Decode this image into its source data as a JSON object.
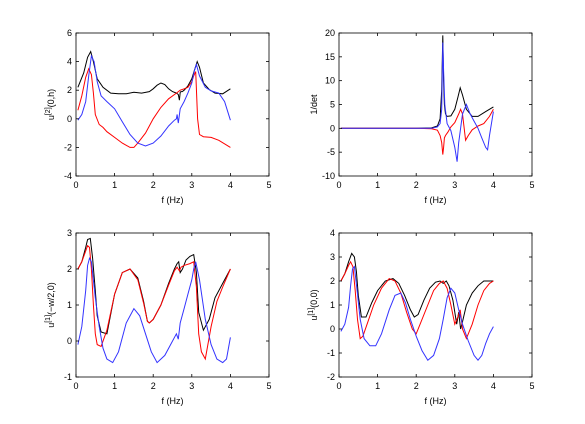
{
  "chart_data": [
    {
      "type": "line",
      "title": "",
      "xlabel": "f (Hz)",
      "ylabel": "u",
      "ylabel_sup": "[2]",
      "ylabel_arg": "(0,h)",
      "xlim": [
        0,
        5
      ],
      "ylim": [
        -4,
        6
      ],
      "xticks": [
        0,
        1,
        2,
        3,
        4,
        5
      ],
      "yticks": [
        -4,
        -2,
        0,
        2,
        4,
        6
      ],
      "grid": false,
      "series": [
        {
          "color": "#000000",
          "x": [
            0.05,
            0.2,
            0.3,
            0.38,
            0.45,
            0.55,
            0.7,
            0.9,
            1.1,
            1.3,
            1.5,
            1.7,
            1.9,
            2.0,
            2.1,
            2.2,
            2.3,
            2.4,
            2.5,
            2.6,
            2.65,
            2.68,
            2.7,
            2.72,
            2.75,
            2.8,
            2.9,
            3.0,
            3.08,
            3.14,
            3.2,
            3.3,
            3.45,
            3.6,
            3.8,
            4.0
          ],
          "y": [
            2.2,
            3.2,
            4.3,
            4.7,
            4.0,
            2.8,
            2.2,
            1.8,
            1.75,
            1.75,
            1.85,
            1.8,
            1.9,
            2.1,
            2.35,
            2.5,
            2.4,
            2.1,
            1.9,
            1.8,
            1.7,
            1.3,
            1.85,
            1.9,
            1.9,
            2.0,
            2.3,
            2.8,
            3.5,
            4.0,
            3.6,
            2.5,
            2.05,
            1.8,
            1.75,
            2.1
          ]
        },
        {
          "color": "#ff0000",
          "x": [
            0.05,
            0.15,
            0.25,
            0.33,
            0.4,
            0.45,
            0.5,
            0.6,
            0.7,
            0.8,
            1.0,
            1.2,
            1.4,
            1.5,
            1.6,
            1.8,
            2.0,
            2.2,
            2.4,
            2.6,
            2.7,
            2.8,
            2.9,
            3.0,
            3.05,
            3.1,
            3.15,
            3.2,
            3.3,
            3.5,
            3.7,
            4.0
          ],
          "y": [
            0.6,
            1.6,
            2.9,
            3.5,
            3.1,
            1.8,
            0.3,
            -0.4,
            -0.6,
            -0.9,
            -1.3,
            -1.7,
            -2.0,
            -2.0,
            -1.7,
            -1.0,
            0.0,
            0.8,
            1.4,
            1.8,
            2.0,
            2.1,
            2.2,
            2.6,
            3.0,
            3.3,
            0.0,
            -1.1,
            -1.25,
            -1.3,
            -1.5,
            -2.0
          ]
        },
        {
          "color": "#3333ff",
          "x": [
            0.05,
            0.15,
            0.25,
            0.33,
            0.4,
            0.47,
            0.55,
            0.65,
            0.8,
            1.0,
            1.2,
            1.4,
            1.6,
            1.8,
            2.0,
            2.2,
            2.4,
            2.55,
            2.6,
            2.62,
            2.65,
            2.7,
            2.8,
            2.9,
            3.0,
            3.07,
            3.12,
            3.2,
            3.35,
            3.5,
            3.7,
            3.85,
            4.0
          ],
          "y": [
            -0.1,
            0.3,
            1.2,
            3.0,
            4.4,
            4.0,
            2.6,
            1.6,
            1.2,
            0.7,
            -0.2,
            -1.1,
            -1.7,
            -1.9,
            -1.7,
            -1.2,
            -0.5,
            -0.1,
            0.0,
            0.3,
            -0.3,
            0.7,
            1.2,
            1.8,
            2.5,
            3.4,
            3.8,
            3.0,
            2.2,
            1.95,
            1.8,
            1.2,
            -0.1
          ]
        }
      ]
    },
    {
      "type": "line",
      "title": "",
      "xlabel": "f (Hz)",
      "ylabel": "1/det",
      "xlim": [
        0,
        5
      ],
      "ylim": [
        -10,
        20
      ],
      "xticks": [
        0,
        1,
        2,
        3,
        4,
        5
      ],
      "yticks": [
        -10,
        -5,
        0,
        5,
        10,
        15,
        20
      ],
      "grid": false,
      "series": [
        {
          "color": "#000000",
          "x": [
            0.05,
            1.0,
            2.0,
            2.4,
            2.55,
            2.62,
            2.66,
            2.69,
            2.71,
            2.73,
            2.76,
            2.8,
            2.9,
            3.0,
            3.08,
            3.14,
            3.2,
            3.3,
            3.45,
            3.6,
            3.8,
            4.0
          ],
          "y": [
            0,
            0,
            0,
            0.1,
            0.5,
            2.0,
            8.0,
            19.5,
            10.0,
            5.0,
            3.0,
            2.5,
            2.6,
            4.0,
            6.5,
            8.5,
            7.0,
            4.0,
            2.5,
            2.5,
            3.5,
            4.5
          ]
        },
        {
          "color": "#ff0000",
          "x": [
            0.05,
            1.0,
            2.0,
            2.4,
            2.55,
            2.62,
            2.66,
            2.69,
            2.71,
            2.73,
            2.76,
            2.82,
            2.9,
            3.0,
            3.1,
            3.15,
            3.2,
            3.28,
            3.35,
            3.45,
            3.6,
            3.75,
            3.9,
            4.0
          ],
          "y": [
            0,
            0,
            0,
            -0.1,
            -0.4,
            -1.5,
            -3.0,
            -5.5,
            -4.0,
            -2.0,
            -1.5,
            -0.8,
            0.3,
            1.2,
            3.0,
            4.0,
            3.0,
            -2.5,
            -1.5,
            -0.3,
            0.5,
            1.0,
            2.5,
            4.0
          ]
        },
        {
          "color": "#3333ff",
          "x": [
            0.05,
            1.0,
            2.0,
            2.4,
            2.55,
            2.62,
            2.66,
            2.69,
            2.71,
            2.74,
            2.8,
            2.9,
            3.0,
            3.06,
            3.1,
            3.15,
            3.2,
            3.3,
            3.4,
            3.5,
            3.6,
            3.7,
            3.8,
            3.85,
            3.9,
            4.0
          ],
          "y": [
            0,
            0,
            0,
            0,
            0.3,
            1.0,
            4.0,
            18.0,
            12.0,
            5.0,
            1.0,
            -0.5,
            -4.0,
            -7.0,
            -3.0,
            0.0,
            3.0,
            5.0,
            3.0,
            1.5,
            0.0,
            -2.0,
            -4.0,
            -4.5,
            -1.5,
            3.5
          ]
        }
      ]
    },
    {
      "type": "line",
      "title": "",
      "xlabel": "f (Hz)",
      "ylabel": "u",
      "ylabel_sup": "[1]",
      "ylabel_arg": "(−w/2,0)",
      "xlim": [
        0,
        5
      ],
      "ylim": [
        -1,
        3
      ],
      "xticks": [
        0,
        1,
        2,
        3,
        4,
        5
      ],
      "yticks": [
        -1,
        0,
        1,
        2,
        3
      ],
      "grid": false,
      "series": [
        {
          "color": "#000000",
          "x": [
            0.05,
            0.15,
            0.25,
            0.3,
            0.37,
            0.43,
            0.5,
            0.55,
            0.65,
            0.8,
            1.0,
            1.2,
            1.4,
            1.6,
            1.75,
            1.85,
            1.9,
            2.0,
            2.2,
            2.4,
            2.55,
            2.62,
            2.66,
            2.7,
            2.76,
            2.85,
            2.95,
            3.05,
            3.12,
            3.18,
            3.3,
            3.45,
            3.6,
            3.8,
            4.0
          ],
          "y": [
            2.0,
            2.2,
            2.6,
            2.82,
            2.85,
            2.3,
            1.4,
            0.7,
            0.25,
            0.2,
            1.3,
            1.9,
            2.0,
            1.75,
            1.1,
            0.55,
            0.5,
            0.6,
            1.0,
            1.6,
            2.0,
            2.15,
            2.2,
            1.9,
            2.0,
            2.25,
            2.35,
            2.4,
            1.9,
            0.8,
            0.3,
            0.6,
            1.2,
            1.6,
            2.0
          ]
        },
        {
          "color": "#ff0000",
          "x": [
            0.05,
            0.15,
            0.25,
            0.3,
            0.35,
            0.4,
            0.45,
            0.5,
            0.55,
            0.65,
            0.8,
            1.0,
            1.2,
            1.4,
            1.6,
            1.75,
            1.85,
            1.9,
            2.0,
            2.2,
            2.4,
            2.55,
            2.62,
            2.68,
            2.72,
            2.8,
            2.95,
            3.05,
            3.12,
            3.18,
            3.25,
            3.35,
            3.5,
            3.65,
            3.8,
            4.0
          ],
          "y": [
            2.0,
            2.2,
            2.5,
            2.65,
            2.6,
            2.0,
            1.0,
            0.2,
            -0.1,
            -0.15,
            0.3,
            1.3,
            1.9,
            2.0,
            1.7,
            1.05,
            0.55,
            0.5,
            0.6,
            1.0,
            1.55,
            1.95,
            2.05,
            1.95,
            2.05,
            2.1,
            2.15,
            2.2,
            1.5,
            0.2,
            -0.3,
            -0.5,
            0.4,
            1.1,
            1.5,
            2.0
          ]
        },
        {
          "color": "#3333ff",
          "x": [
            0.05,
            0.15,
            0.25,
            0.3,
            0.35,
            0.4,
            0.5,
            0.6,
            0.7,
            0.8,
            0.95,
            1.1,
            1.3,
            1.5,
            1.65,
            1.8,
            1.95,
            2.1,
            2.3,
            2.45,
            2.6,
            2.65,
            2.7,
            2.8,
            2.9,
            3.0,
            3.05,
            3.1,
            3.2,
            3.35,
            3.5,
            3.65,
            3.8,
            3.9,
            4.0
          ],
          "y": [
            -0.1,
            0.4,
            1.4,
            2.1,
            2.3,
            2.2,
            1.2,
            0.4,
            -0.2,
            -0.5,
            -0.6,
            -0.3,
            0.5,
            0.9,
            0.7,
            0.2,
            -0.3,
            -0.6,
            -0.4,
            -0.1,
            0.2,
            0.05,
            0.5,
            0.9,
            1.3,
            1.7,
            2.0,
            2.2,
            1.7,
            0.6,
            -0.1,
            -0.5,
            -0.6,
            -0.5,
            0.1
          ]
        }
      ]
    },
    {
      "type": "line",
      "title": "",
      "xlabel": "f (Hz)",
      "ylabel": "u",
      "ylabel_sup": "[1]",
      "ylabel_arg": "(0,0)",
      "xlim": [
        0,
        5
      ],
      "ylim": [
        -2,
        4
      ],
      "xticks": [
        0,
        1,
        2,
        3,
        4,
        5
      ],
      "yticks": [
        -2,
        -1,
        0,
        1,
        2,
        3,
        4
      ],
      "grid": false,
      "series": [
        {
          "color": "#000000",
          "x": [
            0.05,
            0.15,
            0.25,
            0.33,
            0.4,
            0.45,
            0.5,
            0.58,
            0.7,
            0.85,
            1.0,
            1.2,
            1.4,
            1.55,
            1.7,
            1.85,
            1.95,
            2.05,
            2.2,
            2.35,
            2.5,
            2.62,
            2.7,
            2.78,
            2.85,
            2.95,
            3.05,
            3.1,
            3.15,
            3.2,
            3.3,
            3.45,
            3.6,
            3.75,
            3.9,
            4.0
          ],
          "y": [
            2.0,
            2.3,
            2.8,
            3.15,
            3.0,
            2.4,
            1.4,
            0.5,
            0.5,
            1.1,
            1.6,
            2.0,
            2.1,
            1.9,
            1.4,
            0.8,
            0.5,
            0.6,
            1.2,
            1.7,
            1.95,
            2.0,
            1.9,
            2.0,
            1.8,
            1.2,
            0.2,
            0.7,
            0.0,
            0.3,
            1.0,
            1.5,
            1.8,
            2.0,
            2.0,
            2.0
          ]
        },
        {
          "color": "#ff0000",
          "x": [
            0.05,
            0.15,
            0.25,
            0.3,
            0.36,
            0.42,
            0.48,
            0.55,
            0.62,
            0.75,
            0.9,
            1.1,
            1.3,
            1.45,
            1.6,
            1.75,
            1.9,
            2.0,
            2.1,
            2.3,
            2.45,
            2.6,
            2.7,
            2.8,
            2.9,
            3.0,
            3.08,
            3.14,
            3.2,
            3.3,
            3.45,
            3.6,
            3.75,
            3.9,
            4.0
          ],
          "y": [
            2.0,
            2.3,
            2.65,
            2.8,
            2.6,
            1.6,
            0.4,
            -0.4,
            -0.3,
            0.3,
            1.0,
            1.7,
            2.1,
            2.0,
            1.5,
            0.7,
            0.0,
            -0.2,
            0.2,
            1.0,
            1.6,
            1.9,
            2.0,
            1.7,
            1.0,
            0.2,
            0.5,
            0.8,
            0.0,
            -0.4,
            0.2,
            1.0,
            1.6,
            1.9,
            2.0
          ]
        },
        {
          "color": "#3333ff",
          "x": [
            0.05,
            0.15,
            0.25,
            0.3,
            0.35,
            0.4,
            0.47,
            0.55,
            0.65,
            0.8,
            0.95,
            1.1,
            1.3,
            1.45,
            1.6,
            1.72,
            1.85,
            2.0,
            2.15,
            2.3,
            2.45,
            2.6,
            2.7,
            2.8,
            2.9,
            3.0,
            3.1,
            3.2,
            3.35,
            3.5,
            3.6,
            3.7,
            3.8,
            3.9,
            4.0
          ],
          "y": [
            -0.1,
            0.2,
            0.9,
            1.8,
            2.5,
            2.6,
            1.6,
            0.4,
            -0.4,
            -0.7,
            -0.7,
            -0.2,
            0.8,
            1.4,
            1.5,
            1.1,
            0.4,
            -0.3,
            -0.9,
            -1.3,
            -1.1,
            -0.4,
            0.4,
            1.3,
            1.7,
            1.5,
            0.8,
            0.2,
            -0.5,
            -1.1,
            -1.3,
            -1.1,
            -0.6,
            -0.2,
            0.1
          ]
        }
      ]
    }
  ]
}
